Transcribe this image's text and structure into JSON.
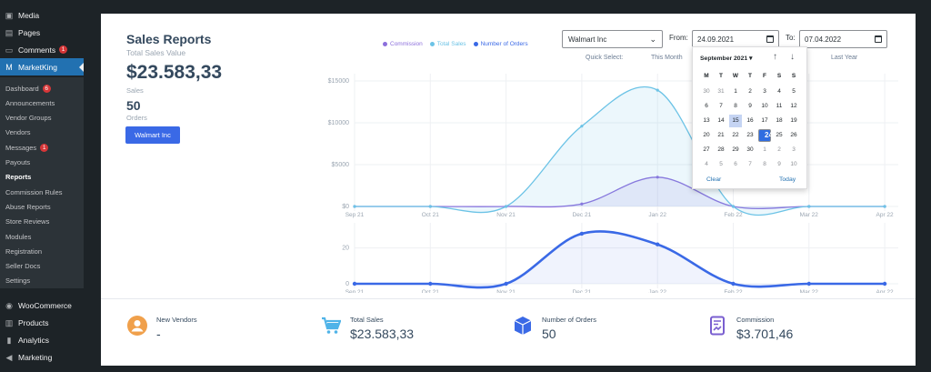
{
  "sidebar": {
    "top": [
      {
        "label": "Media",
        "icon": "media-icon"
      },
      {
        "label": "Pages",
        "icon": "pages-icon"
      },
      {
        "label": "Comments",
        "icon": "comments-icon",
        "badge": "1"
      }
    ],
    "marketking": {
      "label": "MarketKing",
      "icon": "marketking-icon"
    },
    "submenu": [
      {
        "label": "Dashboard",
        "badge": "6"
      },
      {
        "label": "Announcements"
      },
      {
        "label": "Vendor Groups"
      },
      {
        "label": "Vendors"
      },
      {
        "label": "Messages",
        "badge": "1"
      },
      {
        "label": "Payouts"
      },
      {
        "label": "Reports",
        "active": true
      },
      {
        "label": "Commission Rules"
      },
      {
        "label": "Abuse Reports"
      },
      {
        "label": "Store Reviews"
      },
      {
        "label": "Modules"
      },
      {
        "label": "Registration"
      },
      {
        "label": "Seller Docs"
      },
      {
        "label": "Settings"
      }
    ],
    "bottom": [
      {
        "label": "WooCommerce",
        "icon": "woocommerce-icon"
      },
      {
        "label": "Products",
        "icon": "products-icon"
      },
      {
        "label": "Analytics",
        "icon": "analytics-icon"
      },
      {
        "label": "Marketing",
        "icon": "marketing-icon"
      }
    ]
  },
  "report": {
    "title": "Sales Reports",
    "subtitle": "Total Sales Value",
    "sales_value": "$23.583,33",
    "sales_label": "Sales",
    "orders_value": "50",
    "orders_label": "Orders",
    "vendor_button": "Walmart Inc"
  },
  "filters": {
    "vendor_select": "Walmart Inc",
    "from_label": "From:",
    "from_date": "24.09.2021",
    "to_label": "To:",
    "to_date": "07.04.2022",
    "quick_select_label": "Quick Select:",
    "this_month": "This Month",
    "last_year": "Last Year"
  },
  "datepicker": {
    "month_label": "September 2021 ▾",
    "weekdays": [
      "M",
      "T",
      "W",
      "T",
      "F",
      "S",
      "S"
    ],
    "weeks": [
      [
        "30",
        "31",
        "1",
        "2",
        "3",
        "4",
        "5"
      ],
      [
        "6",
        "7",
        "8",
        "9",
        "10",
        "11",
        "12"
      ],
      [
        "13",
        "14",
        "15",
        "16",
        "17",
        "18",
        "19"
      ],
      [
        "20",
        "21",
        "22",
        "23",
        "24",
        "25",
        "26"
      ],
      [
        "27",
        "28",
        "29",
        "30",
        "1",
        "2",
        "3"
      ],
      [
        "4",
        "5",
        "6",
        "7",
        "8",
        "9",
        "10"
      ]
    ],
    "clear": "Clear",
    "today": "Today"
  },
  "colors": {
    "commission": "#8c6fdc",
    "total_sales": "#6cc3e6",
    "orders": "#3a69e6"
  },
  "chart_data": [
    {
      "type": "area",
      "categories": [
        "Sep 21",
        "Oct 21",
        "Nov 21",
        "Dec 21",
        "Jan 22",
        "Feb 22",
        "Mar 22",
        "Apr 22"
      ],
      "series": [
        {
          "name": "Commission",
          "values": [
            0,
            0,
            0,
            300,
            3500,
            0,
            0,
            0
          ]
        },
        {
          "name": "Total Sales",
          "values": [
            0,
            0,
            0,
            9600,
            13900,
            0,
            0,
            0
          ]
        }
      ],
      "legend": [
        "Commission",
        "Total Sales",
        "Number of Orders"
      ],
      "yticks": [
        "$0",
        "$5000",
        "$10000",
        "$15000"
      ],
      "ylim": [
        0,
        15000
      ],
      "grid": true
    },
    {
      "type": "area",
      "categories": [
        "Sep 21",
        "Oct 21",
        "Nov 21",
        "Dec 21",
        "Jan 22",
        "Feb 22",
        "Mar 22",
        "Apr 22"
      ],
      "series": [
        {
          "name": "Number of Orders",
          "values": [
            0,
            0,
            0,
            28,
            22,
            0,
            0,
            0
          ]
        }
      ],
      "yticks": [
        "0",
        "20"
      ],
      "ylim": [
        0,
        30
      ],
      "grid": true
    }
  ],
  "stats": [
    {
      "label": "New Vendors",
      "value": "-",
      "icon": "user-icon",
      "color": "#f0a04b"
    },
    {
      "label": "Total Sales",
      "value": "$23.583,33",
      "icon": "cart-icon",
      "color": "#4fb3e8"
    },
    {
      "label": "Number of Orders",
      "value": "50",
      "icon": "box-icon",
      "color": "#3a69e6"
    },
    {
      "label": "Commission",
      "value": "$3.701,46",
      "icon": "receipt-icon",
      "color": "#7a5fd0"
    }
  ]
}
